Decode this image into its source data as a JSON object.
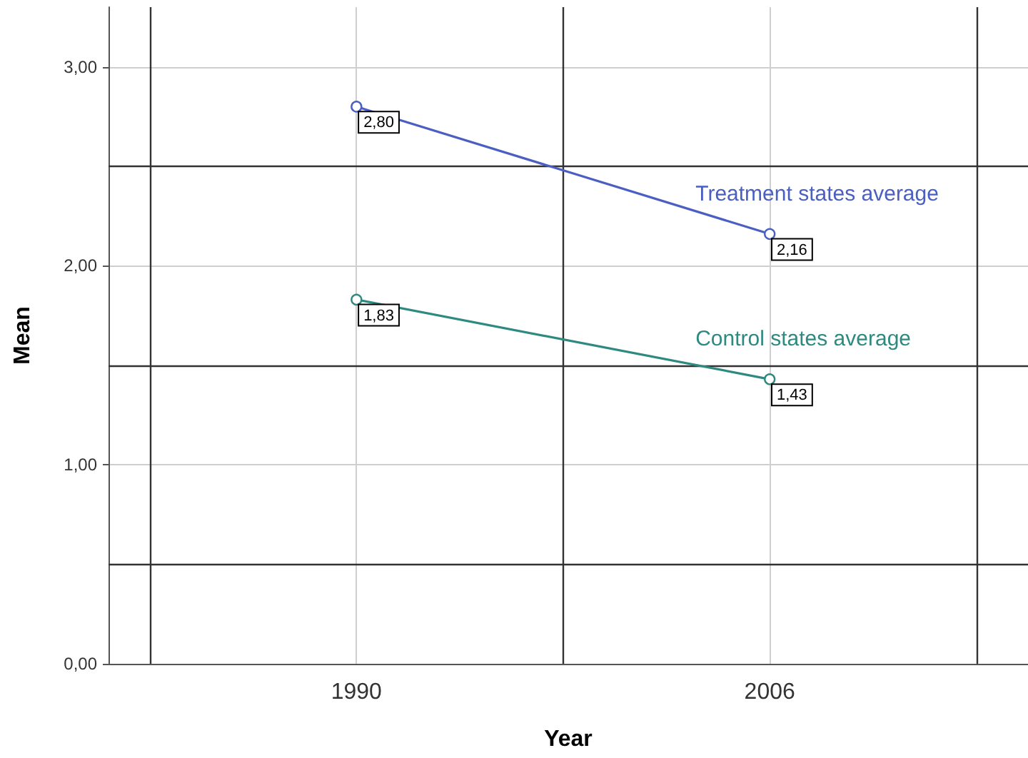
{
  "chart_data": {
    "type": "line",
    "xlabel": "Year",
    "ylabel": "Mean",
    "x": [
      1990,
      2006
    ],
    "series": [
      {
        "name": "Treatment states average",
        "color": "#4a5fc1",
        "values": [
          2.8,
          2.16
        ],
        "value_labels": [
          "2,80",
          "2,16"
        ]
      },
      {
        "name": "Control states average",
        "color": "#2e8a80",
        "values": [
          1.83,
          1.43
        ],
        "value_labels": [
          "1,83",
          "1,43"
        ]
      }
    ],
    "xlim": [
      1980.4,
      2016
    ],
    "xticks": [
      1990,
      2006
    ],
    "ylim": [
      0,
      3.3
    ],
    "yticks": [
      {
        "value": 0,
        "label": "0,00"
      },
      {
        "value": 1,
        "label": "1,00"
      },
      {
        "value": 2,
        "label": "2,00"
      },
      {
        "value": 3,
        "label": "3,00"
      }
    ],
    "ref_lines": [
      {
        "axis": "y",
        "value": 0.5,
        "color": "#333333"
      },
      {
        "axis": "y",
        "value": 1.5,
        "color": "#333333"
      },
      {
        "axis": "y",
        "value": 2.5,
        "color": "#333333"
      },
      {
        "axis": "x",
        "value": 1982,
        "color": "#333333"
      },
      {
        "axis": "x",
        "value": 1998,
        "color": "#333333"
      },
      {
        "axis": "x",
        "value": 2014,
        "color": "#333333"
      }
    ],
    "grid": true,
    "marker": "circle",
    "line_style": "solid",
    "legend": false
  }
}
